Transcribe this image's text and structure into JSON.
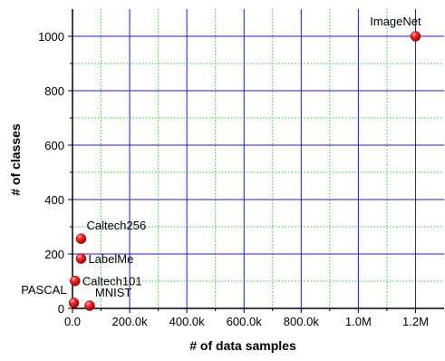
{
  "chart_data": {
    "type": "scatter",
    "title": "",
    "xlabel": "# of data samples",
    "ylabel": "# of classes",
    "xlim": [
      0,
      1300000
    ],
    "ylim": [
      0,
      1100
    ],
    "x_ticks": [
      {
        "value": 0,
        "label": "0.0"
      },
      {
        "value": 200000,
        "label": "200.0k"
      },
      {
        "value": 400000,
        "label": "400.0k"
      },
      {
        "value": 600000,
        "label": "600.0k"
      },
      {
        "value": 800000,
        "label": "800.0k"
      },
      {
        "value": 1000000,
        "label": "1.0M"
      },
      {
        "value": 1200000,
        "label": "1.2M"
      }
    ],
    "y_ticks": [
      {
        "value": 0,
        "label": "0"
      },
      {
        "value": 200,
        "label": "200"
      },
      {
        "value": 400,
        "label": "400"
      },
      {
        "value": 600,
        "label": "600"
      },
      {
        "value": 800,
        "label": "800"
      },
      {
        "value": 1000,
        "label": "1000"
      }
    ],
    "grid": {
      "major": true,
      "minor": true,
      "major_color": "#1a1acc",
      "minor_color": "#33cc33"
    },
    "marker_color": "#ee1111",
    "points": [
      {
        "label": "ImageNet",
        "x": 1200000,
        "y": 1000,
        "label_pos": "above-left"
      },
      {
        "label": "Caltech256",
        "x": 30000,
        "y": 256,
        "label_pos": "above-right"
      },
      {
        "label": "LabelMe",
        "x": 30000,
        "y": 183,
        "label_pos": "right"
      },
      {
        "label": "Caltech101",
        "x": 9000,
        "y": 101,
        "label_pos": "right"
      },
      {
        "label": "PASCAL",
        "x": 5000,
        "y": 20,
        "label_pos": "left"
      },
      {
        "label": "MNIST",
        "x": 60000,
        "y": 10,
        "label_pos": "above-right"
      }
    ]
  }
}
